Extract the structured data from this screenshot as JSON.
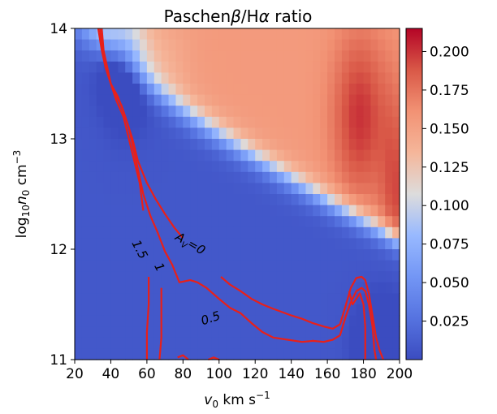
{
  "chart_data": {
    "type": "heatmap",
    "title": "Paschenβ/Hα ratio",
    "title_parts": {
      "pre": "Paschen",
      "beta": "β",
      "mid": "/H",
      "alpha": "α",
      "post": " ratio"
    },
    "xlabel": "v0 km s⁻¹",
    "xlabel_parts": {
      "main": "v",
      "sub": "0",
      "units": " km s",
      "sup": "−1"
    },
    "ylabel": "log10 n0 cm⁻³",
    "ylabel_parts": {
      "log": "log",
      "sub1": "10",
      "n": "n",
      "sub2": "0",
      "units": " cm",
      "sup": "−3"
    },
    "xlim": [
      20,
      200
    ],
    "ylim": [
      11,
      14
    ],
    "x_ticks": [
      "20",
      "40",
      "60",
      "80",
      "100",
      "120",
      "140",
      "160",
      "180",
      "200"
    ],
    "y_ticks": [
      "11",
      "12",
      "13",
      "14"
    ],
    "colormap": "coolwarm",
    "colorbar": {
      "range": [
        0.0,
        0.215
      ],
      "ticks": [
        "0.025",
        "0.050",
        "0.075",
        "0.100",
        "0.125",
        "0.150",
        "0.175",
        "0.200"
      ]
    },
    "grid": false,
    "contour_color": "#e8201a",
    "contours": [
      {
        "label": "Av=0",
        "label_parts": {
          "a": "A",
          "sub": "V",
          "rest": "=0"
        },
        "label_at": [
          83,
          12.02
        ],
        "label_rotation": 30,
        "paths": [
          [
            [
              33,
              14.0
            ],
            [
              35,
              13.8
            ],
            [
              37,
              13.65
            ],
            [
              40,
              13.5
            ],
            [
              44,
              13.38
            ],
            [
              48,
              13.2
            ],
            [
              52,
              13.0
            ],
            [
              55,
              12.8
            ],
            [
              60,
              12.6
            ],
            [
              65,
              12.45
            ],
            [
              70,
              12.32
            ],
            [
              75,
              12.2
            ],
            [
              80,
              12.1
            ]
          ]
        ]
      },
      {
        "label": "0.5",
        "label_at": [
          96,
          11.34
        ],
        "label_rotation": -18,
        "paths": [
          [
            [
              101,
              11.75
            ],
            [
              106,
              11.68
            ],
            [
              112,
              11.62
            ],
            [
              118,
              11.55
            ],
            [
              124,
              11.5
            ],
            [
              130,
              11.46
            ],
            [
              135,
              11.43
            ],
            [
              140,
              11.4
            ],
            [
              146,
              11.37
            ],
            [
              152,
              11.33
            ],
            [
              158,
              11.3
            ],
            [
              163,
              11.28
            ],
            [
              167,
              11.32
            ],
            [
              170,
              11.48
            ],
            [
              173,
              11.65
            ],
            [
              176,
              11.74
            ],
            [
              179,
              11.75
            ],
            [
              181,
              11.72
            ],
            [
              183,
              11.6
            ],
            [
              185,
              11.4
            ],
            [
              187,
              11.2
            ],
            [
              189,
              11.08
            ],
            [
              191,
              11.0
            ]
          ]
        ]
      },
      {
        "label": "1",
        "label_at": [
          65,
          11.82
        ],
        "label_rotation": 62,
        "paths": [
          [
            [
              34,
              14.0
            ],
            [
              36,
              13.75
            ],
            [
              38,
              13.6
            ],
            [
              41,
              13.45
            ],
            [
              46,
              13.3
            ],
            [
              50,
              13.1
            ],
            [
              54,
              12.8
            ],
            [
              58,
              12.5
            ],
            [
              62,
              12.3
            ],
            [
              66,
              12.15
            ],
            [
              70,
              11.98
            ],
            [
              74,
              11.86
            ],
            [
              78,
              11.7
            ],
            [
              84,
              11.72
            ],
            [
              88,
              11.7
            ],
            [
              93,
              11.65
            ],
            [
              100,
              11.55
            ],
            [
              106,
              11.47
            ],
            [
              112,
              11.42
            ],
            [
              118,
              11.33
            ],
            [
              124,
              11.25
            ],
            [
              130,
              11.2
            ],
            [
              138,
              11.18
            ],
            [
              146,
              11.16
            ],
            [
              152,
              11.17
            ],
            [
              158,
              11.16
            ],
            [
              163,
              11.18
            ],
            [
              167,
              11.22
            ],
            [
              170,
              11.38
            ],
            [
              173,
              11.52
            ],
            [
              176,
              11.62
            ],
            [
              179,
              11.65
            ],
            [
              181,
              11.62
            ],
            [
              183,
              11.5
            ],
            [
              185,
              11.3
            ],
            [
              186,
              11.1
            ],
            [
              187,
              11.0
            ]
          ],
          [
            [
              68,
              11.65
            ],
            [
              68,
              11.4
            ],
            [
              68,
              11.2
            ],
            [
              67,
              11.0
            ]
          ]
        ]
      },
      {
        "label": "1.5",
        "label_at": [
          54,
          11.98
        ],
        "label_rotation": 62,
        "paths": [
          [
            [
              35,
              14.0
            ],
            [
              36,
              13.8
            ],
            [
              38,
              13.65
            ],
            [
              40,
              13.5
            ],
            [
              43,
              13.35
            ],
            [
              47,
              13.2
            ],
            [
              50,
              13.0
            ],
            [
              53,
              12.8
            ],
            [
              56,
              12.6
            ],
            [
              58,
              12.35
            ]
          ],
          [
            [
              61,
              11.75
            ],
            [
              61,
              11.5
            ],
            [
              60,
              11.25
            ],
            [
              60,
              11.0
            ]
          ],
          [
            [
              172,
              11.62
            ],
            [
              174,
              11.5
            ],
            [
              176,
              11.55
            ],
            [
              178,
              11.6
            ],
            [
              180,
              11.5
            ],
            [
              181,
              11.3
            ],
            [
              181,
              11.1
            ],
            [
              181,
              11.0
            ]
          ],
          [
            [
              77,
              11.02
            ],
            [
              80,
              11.04
            ],
            [
              83,
              11.0
            ]
          ],
          [
            [
              94,
              11.0
            ],
            [
              97,
              11.02
            ],
            [
              100,
              11.0
            ]
          ]
        ]
      }
    ]
  }
}
